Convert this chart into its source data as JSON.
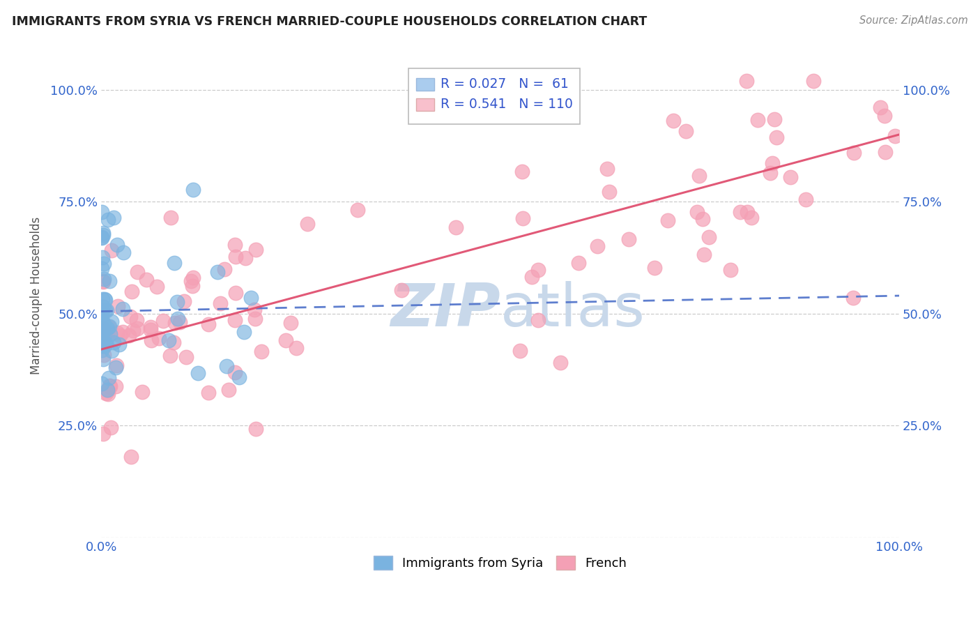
{
  "title": "IMMIGRANTS FROM SYRIA VS FRENCH MARRIED-COUPLE HOUSEHOLDS CORRELATION CHART",
  "source": "Source: ZipAtlas.com",
  "ylabel": "Married-couple Households",
  "y_tick_labels_left": [
    "",
    "25.0%",
    "50.0%",
    "75.0%",
    "100.0%"
  ],
  "y_tick_labels_right": [
    "",
    "25.0%",
    "50.0%",
    "75.0%",
    "100.0%"
  ],
  "y_tick_positions": [
    0.0,
    0.25,
    0.5,
    0.75,
    1.0
  ],
  "xlim": [
    0.0,
    1.0
  ],
  "ylim": [
    0.0,
    1.08
  ],
  "blue_r": 0.027,
  "blue_n": 61,
  "pink_r": 0.541,
  "pink_n": 110,
  "blue_color": "#7ab3e0",
  "pink_color": "#f4a0b5",
  "blue_line_color": "#5577cc",
  "pink_line_color": "#e05070",
  "watermark_color": "#c8d8ea",
  "background_color": "#ffffff",
  "legend_color_blue": "#aaccee",
  "legend_color_pink": "#f8c0cc",
  "grid_color": "#cccccc",
  "title_color": "#222222",
  "source_color": "#888888",
  "tick_color": "#3366cc",
  "ylabel_color": "#555555"
}
